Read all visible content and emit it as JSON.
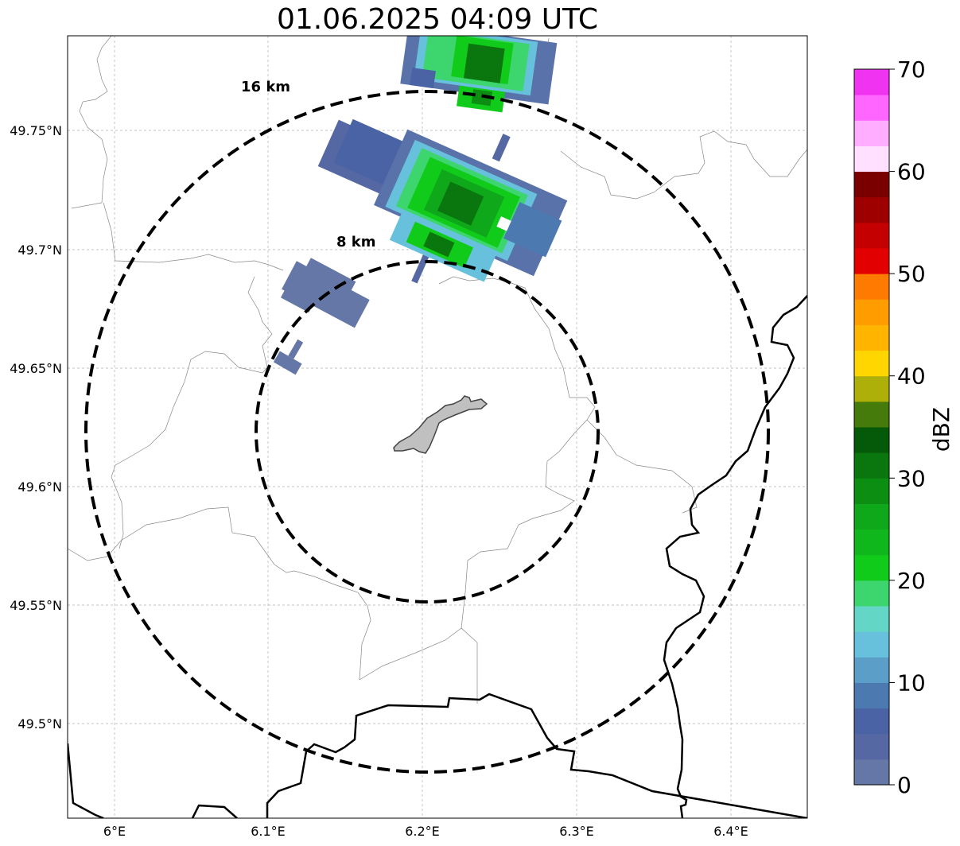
{
  "title": "01.06.2025 04:09 UTC",
  "map": {
    "lon_ticks": [
      "6°E",
      "6.1°E",
      "6.2°E",
      "6.3°E",
      "6.4°E"
    ],
    "lat_ticks": [
      "49.75°N",
      "49.7°N",
      "49.65°N",
      "49.6°N",
      "49.55°N",
      "49.5°N"
    ],
    "range_rings": [
      {
        "label": "8 km",
        "radius_km": 8
      },
      {
        "label": "16 km",
        "radius_km": 16
      }
    ],
    "grid": true
  },
  "colorbar": {
    "label": "dBZ",
    "ticks": [
      "0",
      "10",
      "20",
      "30",
      "40",
      "50",
      "60",
      "70"
    ],
    "range": [
      0,
      70
    ],
    "step": 2.5,
    "colors": [
      "#6577a6",
      "#5568a3",
      "#4a63a5",
      "#4c7ab0",
      "#5b9fc9",
      "#67c1dc",
      "#63d6c6",
      "#3dd56e",
      "#11cb1a",
      "#10b71c",
      "#0ea81a",
      "#0c8e13",
      "#09770e",
      "#045a09",
      "#457b0b",
      "#aeb00a",
      "#ffd600",
      "#ffb400",
      "#ff9c00",
      "#ff7a00",
      "#e30000",
      "#c40000",
      "#9e0000",
      "#7a0000",
      "#ffe0ff",
      "#ffadff",
      "#ff66ff",
      "#f033f0"
    ]
  }
}
